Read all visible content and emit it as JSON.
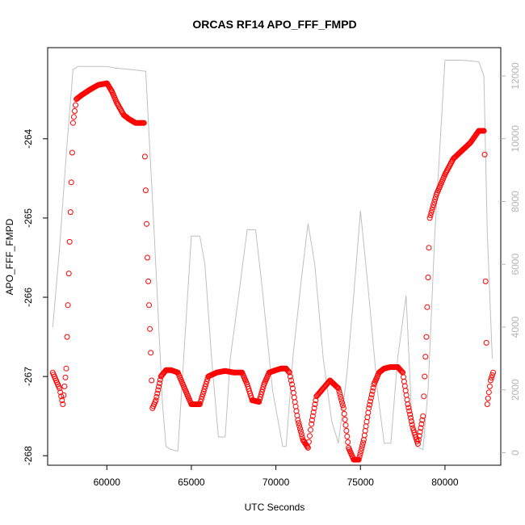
{
  "chart_data": {
    "type": "scatter",
    "title": "ORCAS RF14 APO_FFF_FMPD",
    "xlabel": "UTC Seconds",
    "ylabel": "APO_FFF_FMPD",
    "xlim": [
      56500,
      83300
    ],
    "ylim": [
      -268.12,
      -262.85
    ],
    "x_ticks": [
      60000,
      65000,
      70000,
      75000,
      80000
    ],
    "x_tick_labels": [
      "60000",
      "65000",
      "70000",
      "75000",
      "80000"
    ],
    "y_ticks": [
      -268,
      -267,
      -266,
      -265,
      -264
    ],
    "y_tick_labels": [
      "-268",
      "-267",
      "-266",
      "-265",
      "-264"
    ],
    "y2lim": [
      -400,
      12900
    ],
    "y2_ticks": [
      0,
      2000,
      4000,
      6000,
      8000,
      10000,
      12000
    ],
    "y2_tick_labels": [
      "0",
      "2000",
      "4000",
      "6000",
      "8000",
      "10000",
      "12000"
    ],
    "grid": false,
    "series": [
      {
        "role": "primary",
        "marker": "open-circle",
        "color": "#ff0000",
        "x": [
          56800,
          57000,
          57200,
          57400,
          57600,
          57800,
          58000,
          58200,
          58500,
          59000,
          59500,
          60000,
          60300,
          60600,
          61000,
          61300,
          61700,
          62200,
          62400,
          62600,
          62700,
          62900,
          63200,
          63500,
          63800,
          64200,
          64700,
          65000,
          65500,
          66000,
          66500,
          67000,
          67500,
          68000,
          68300,
          68600,
          69000,
          69300,
          69600,
          70000,
          70300,
          70600,
          70800,
          71000,
          71300,
          71600,
          71900,
          72100,
          72400,
          72800,
          73200,
          73700,
          74000,
          74300,
          74600,
          74900,
          75200,
          75500,
          75800,
          76100,
          76400,
          76800,
          77200,
          77500,
          77800,
          78100,
          78400,
          78700,
          78900,
          79100,
          79500,
          80000,
          80500,
          81000,
          81500,
          82000,
          82300,
          82350,
          82400,
          82500,
          82700,
          82850
        ],
        "y": [
          -266.95,
          -267.05,
          -267.15,
          -267.35,
          -266.9,
          -265.3,
          -263.8,
          -263.5,
          -263.45,
          -263.38,
          -263.32,
          -263.3,
          -263.4,
          -263.55,
          -263.7,
          -263.75,
          -263.8,
          -263.8,
          -265.5,
          -266.7,
          -267.4,
          -267.3,
          -267.0,
          -266.92,
          -266.92,
          -266.95,
          -267.2,
          -267.35,
          -267.35,
          -267.0,
          -266.95,
          -266.93,
          -266.95,
          -266.95,
          -267.1,
          -267.3,
          -267.32,
          -267.1,
          -266.95,
          -266.92,
          -266.9,
          -266.9,
          -266.95,
          -267.15,
          -267.55,
          -267.8,
          -267.9,
          -267.6,
          -267.25,
          -267.15,
          -267.05,
          -267.15,
          -267.4,
          -267.9,
          -268.05,
          -268.05,
          -267.8,
          -267.4,
          -267.1,
          -266.95,
          -266.9,
          -266.88,
          -266.88,
          -266.95,
          -267.35,
          -267.65,
          -267.85,
          -267.5,
          -266.5,
          -265.0,
          -264.7,
          -264.45,
          -264.25,
          -264.15,
          -264.05,
          -263.9,
          -263.9,
          -264.2,
          -265.8,
          -267.35,
          -267.05,
          -266.95
        ]
      },
      {
        "role": "secondary",
        "axis": "right",
        "color": "#c0c0c0",
        "x": [
          56800,
          57200,
          57600,
          58000,
          58300,
          60000,
          60500,
          61500,
          62300,
          62800,
          63300,
          63500,
          63800,
          64200,
          64600,
          65000,
          65500,
          65800,
          66200,
          66600,
          67000,
          67300,
          67800,
          68300,
          68800,
          69200,
          69800,
          70400,
          70600,
          71000,
          71500,
          71900,
          72300,
          72800,
          73300,
          73700,
          74200,
          74600,
          75000,
          75500,
          76000,
          76400,
          76800,
          77200,
          77700,
          78000,
          78300,
          78700,
          79000,
          79400,
          80000,
          81000,
          82000,
          82300,
          82500,
          82800
        ],
        "y": [
          4000,
          6500,
          9500,
          12200,
          12300,
          12300,
          12250,
          12200,
          12150,
          7000,
          1500,
          200,
          100,
          50,
          3500,
          6900,
          6900,
          6000,
          3000,
          500,
          500,
          3000,
          5000,
          7100,
          7100,
          5200,
          2000,
          200,
          200,
          3000,
          5500,
          7300,
          6000,
          3000,
          1000,
          300,
          2500,
          5000,
          7700,
          5000,
          2000,
          300,
          300,
          3000,
          5000,
          1500,
          200,
          100,
          2000,
          7000,
          12500,
          12500,
          12450,
          12000,
          7000,
          3000
        ]
      }
    ]
  }
}
